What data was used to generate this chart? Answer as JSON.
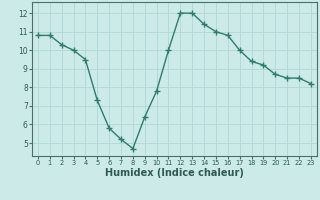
{
  "x": [
    0,
    1,
    2,
    3,
    4,
    5,
    6,
    7,
    8,
    9,
    10,
    11,
    12,
    13,
    14,
    15,
    16,
    17,
    18,
    19,
    20,
    21,
    22,
    23
  ],
  "y": [
    10.8,
    10.8,
    10.3,
    10.0,
    9.5,
    7.3,
    5.8,
    5.2,
    4.7,
    6.4,
    7.8,
    10.0,
    12.0,
    12.0,
    11.4,
    11.0,
    10.8,
    10.0,
    9.4,
    9.2,
    8.7,
    8.5,
    8.5,
    8.2
  ],
  "line_color": "#2e7d6e",
  "marker": "+",
  "marker_size": 4,
  "line_width": 1.0,
  "xlabel": "Humidex (Indice chaleur)",
  "xlabel_fontsize": 7,
  "bg_color": "#cceae8",
  "grid_color": "#b0d8d5",
  "axis_color": "#4a6f6a",
  "tick_color": "#2e5a55",
  "xlim": [
    -0.5,
    23.5
  ],
  "ylim": [
    4.3,
    12.6
  ],
  "yticks": [
    5,
    6,
    7,
    8,
    9,
    10,
    11,
    12
  ],
  "xticks": [
    0,
    1,
    2,
    3,
    4,
    5,
    6,
    7,
    8,
    9,
    10,
    11,
    12,
    13,
    14,
    15,
    16,
    17,
    18,
    19,
    20,
    21,
    22,
    23
  ],
  "xtick_labels": [
    "0",
    "1",
    "2",
    "3",
    "4",
    "5",
    "6",
    "7",
    "8",
    "9",
    "10",
    "11",
    "12",
    "13",
    "14",
    "15",
    "16",
    "17",
    "18",
    "19",
    "20",
    "21",
    "22",
    "23"
  ]
}
